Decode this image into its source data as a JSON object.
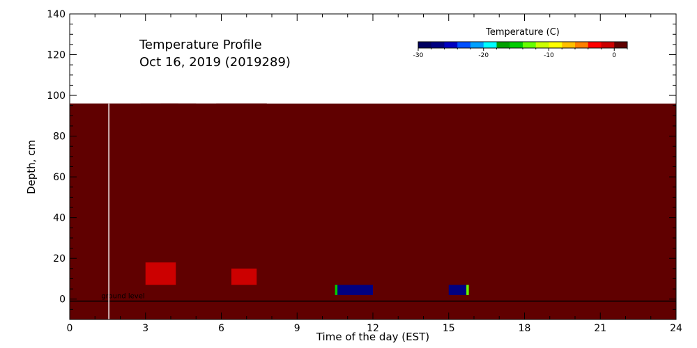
{
  "chart_data": {
    "type": "heatmap",
    "title": "Temperature Profile",
    "subtitle": "Oct 16, 2019 (2019289)",
    "xlabel": "Time of the day (EST)",
    "ylabel": "Depth, cm",
    "xlim": [
      0,
      24
    ],
    "ylim": [
      -10,
      140
    ],
    "xticks": [
      0,
      3,
      6,
      9,
      12,
      15,
      18,
      21,
      24
    ],
    "yticks": [
      0,
      20,
      40,
      60,
      80,
      100,
      120,
      140
    ],
    "data_depth_top": 96,
    "colorbar": {
      "title": "Temperature (C)",
      "range": [
        -30,
        2
      ],
      "ticks": [
        -30,
        -20,
        -10,
        0
      ],
      "colors": [
        "#000060",
        "#000080",
        "#0000c0",
        "#0050ff",
        "#00a0ff",
        "#00ffff",
        "#00a000",
        "#00cc00",
        "#66ff00",
        "#ccff00",
        "#ffff00",
        "#ffc000",
        "#ff8000",
        "#ff0000",
        "#cc0000",
        "#600000"
      ]
    },
    "background_value": 1.8,
    "patches": [
      {
        "t": [
          0.0,
          7.8
        ],
        "d": [
          25,
          96
        ],
        "temp": 1.2
      },
      {
        "t": [
          2.8,
          5.0
        ],
        "d": [
          20,
          96
        ],
        "temp": 0.4
      },
      {
        "t": [
          3.6,
          4.3
        ],
        "d": [
          45,
          96
        ],
        "temp": 0.2
      },
      {
        "t": [
          5.8,
          7.8
        ],
        "d": [
          30,
          96
        ],
        "temp": 0.5
      },
      {
        "t": [
          0.0,
          7.8
        ],
        "d": [
          5,
          25
        ],
        "temp": 0.6
      },
      {
        "t": [
          3.0,
          4.2
        ],
        "d": [
          5,
          18
        ],
        "temp": -0.3
      },
      {
        "t": [
          3.8,
          4.1
        ],
        "d": [
          7,
          12
        ],
        "temp": -1.0
      },
      {
        "t": [
          6.4,
          7.4
        ],
        "d": [
          5,
          15
        ],
        "temp": -0.3
      },
      {
        "t": [
          0.0,
          24.0
        ],
        "d": [
          -10,
          2
        ],
        "temp": 1.6
      },
      {
        "t": [
          1.0,
          7.8
        ],
        "d": [
          -3,
          2
        ],
        "temp": 1.4
      }
    ],
    "ground_band": [
      {
        "t": [
          0.0,
          8.7
        ],
        "temp": 0.5
      },
      {
        "t": [
          8.7,
          8.8
        ],
        "temp": 1.2
      },
      {
        "t": [
          8.8,
          10.5
        ],
        "temp": 1.8
      },
      {
        "t": [
          10.5,
          10.6
        ],
        "temp": -16.0
      },
      {
        "t": [
          10.6,
          12.0
        ],
        "temp": -28.0
      },
      {
        "t": [
          12.0,
          15.0
        ],
        "temp": 0.5
      },
      {
        "t": [
          15.0,
          15.7
        ],
        "temp": -28.0
      },
      {
        "t": [
          15.7,
          15.8
        ],
        "temp": -14.0
      },
      {
        "t": [
          15.8,
          17.1
        ],
        "temp": 1.8
      },
      {
        "t": [
          17.1,
          24.0
        ],
        "temp": 0.5
      }
    ],
    "ground_band_depth": [
      2,
      7
    ],
    "ground_level_depth": -1,
    "ground_label": "ground level",
    "marker_times": [
      1.55
    ]
  }
}
